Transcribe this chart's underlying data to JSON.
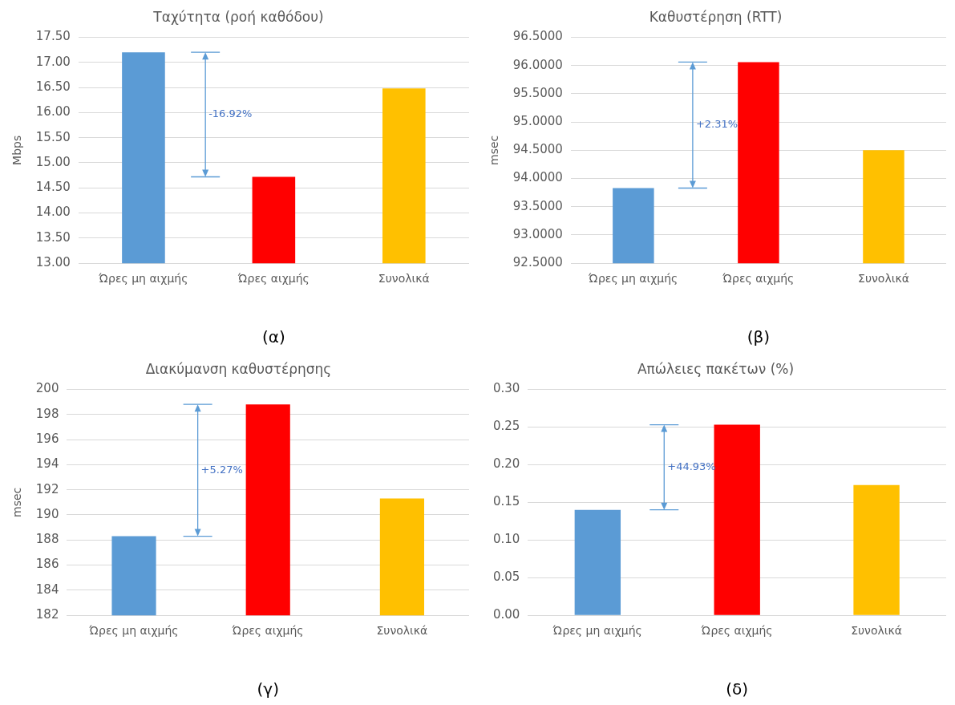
{
  "chart_data": [
    {
      "type": "bar",
      "title": "Ταχύτητα (ροή καθόδου)",
      "ylabel": "Mbps",
      "categories": [
        "Ώρες μη αιχμής",
        "Ώρες αιχμής",
        "Συνολικά"
      ],
      "values": [
        17.2,
        14.72,
        16.48
      ],
      "colors": [
        "#5b9bd5",
        "#ff0000",
        "#ffc000"
      ],
      "ylim": [
        13,
        17.5
      ],
      "yticks": [
        {
          "value": 13,
          "label": "13.00"
        },
        {
          "value": 13.5,
          "label": "13.50"
        },
        {
          "value": 14,
          "label": "14.00"
        },
        {
          "value": 14.5,
          "label": "14.50"
        },
        {
          "value": 15,
          "label": "15.00"
        },
        {
          "value": 15.5,
          "label": "15.50"
        },
        {
          "value": 16,
          "label": "16.00"
        },
        {
          "value": 16.5,
          "label": "16.50"
        },
        {
          "value": 17,
          "label": "17.00"
        },
        {
          "value": 17.5,
          "label": "17.50"
        }
      ],
      "grid": "y",
      "legend": false,
      "annotations": [
        "-16.92%",
        "(α)"
      ]
    },
    {
      "type": "bar",
      "title": "Καθυστέρηση (RTT)",
      "ylabel": "msec",
      "categories": [
        "Ώρες μη αιχμής",
        "Ώρες αιχμής",
        "Συνολικά"
      ],
      "values": [
        93.83,
        96.06,
        94.5
      ],
      "colors": [
        "#5b9bd5",
        "#ff0000",
        "#ffc000"
      ],
      "ylim": [
        92.5,
        96.5
      ],
      "yticks": [
        {
          "value": 92.5,
          "label": "92.5000"
        },
        {
          "value": 93,
          "label": "93.0000"
        },
        {
          "value": 93.5,
          "label": "93.5000"
        },
        {
          "value": 94,
          "label": "94.0000"
        },
        {
          "value": 94.5,
          "label": "94.5000"
        },
        {
          "value": 95,
          "label": "95.0000"
        },
        {
          "value": 95.5,
          "label": "95.5000"
        },
        {
          "value": 96,
          "label": "96.0000"
        },
        {
          "value": 96.5,
          "label": "96.5000"
        }
      ],
      "grid": "y",
      "legend": false,
      "annotations": [
        "+2.31%",
        "(β)"
      ]
    },
    {
      "type": "bar",
      "title": "Διακύμανση καθυστέρησης",
      "ylabel": "msec",
      "categories": [
        "Ώρες μη αιχμής",
        "Ώρες αιχμής",
        "Συνολικά"
      ],
      "values": [
        188.3,
        198.8,
        191.3
      ],
      "colors": [
        "#5b9bd5",
        "#ff0000",
        "#ffc000"
      ],
      "ylim": [
        182,
        200
      ],
      "yticks": [
        182,
        184,
        186,
        188,
        190,
        192,
        194,
        196,
        198,
        200
      ],
      "grid": "y",
      "legend": false,
      "annotations": [
        "+5.27%",
        "(γ)"
      ]
    },
    {
      "type": "bar",
      "title": "Απώλειες πακέτων (%)",
      "categories": [
        "Ώρες μη αιχμής",
        "Ώρες αιχμής",
        "Συνολικά"
      ],
      "values": [
        0.14,
        0.253,
        0.173
      ],
      "colors": [
        "#5b9bd5",
        "#ff0000",
        "#ffc000"
      ],
      "ylim": [
        0,
        0.3
      ],
      "yticks": [
        {
          "value": 0,
          "label": "0.00"
        },
        {
          "value": 0.05,
          "label": "0.05"
        },
        {
          "value": 0.1,
          "label": "0.10"
        },
        {
          "value": 0.15,
          "label": "0.15"
        },
        {
          "value": 0.2,
          "label": "0.20"
        },
        {
          "value": 0.25,
          "label": "0.25"
        },
        {
          "value": 0.3,
          "label": "0.30"
        }
      ],
      "grid": "y",
      "legend": false,
      "annotations": [
        "+44.93%",
        "(δ)"
      ]
    }
  ]
}
